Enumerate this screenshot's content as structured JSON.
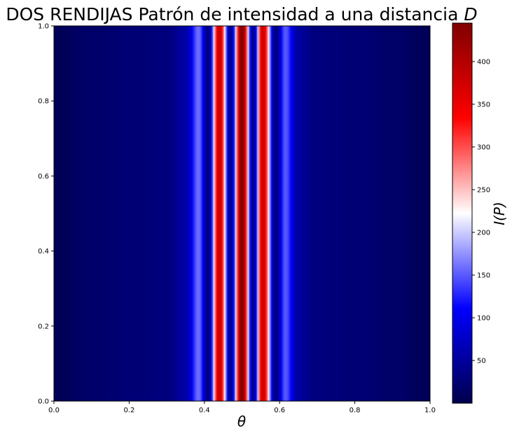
{
  "chart_data": {
    "type": "heatmap",
    "title": "DOS RENDIJAS Patrón de intensidad a una distancia ",
    "title_var": "D",
    "xlabel": "θ",
    "ylabel": "",
    "colorbar_label": "I(P)",
    "colormap": "seismic",
    "colormap_stops": [
      "#00004c",
      "#0000ff",
      "#ffffff",
      "#ff0000",
      "#800000"
    ],
    "xlim": [
      0.0,
      1.0
    ],
    "ylim": [
      0.0,
      1.0
    ],
    "clim": [
      0,
      445
    ],
    "x_ticks": [
      "0.0",
      "0.2",
      "0.4",
      "0.6",
      "0.8",
      "1.0"
    ],
    "y_ticks": [
      "0.0",
      "0.2",
      "0.4",
      "0.6",
      "0.8",
      "1.0"
    ],
    "colorbar_ticks": [
      "50",
      "100",
      "150",
      "200",
      "250",
      "300",
      "350",
      "400"
    ],
    "colorbar_tick_values": [
      50,
      100,
      150,
      200,
      250,
      300,
      350,
      400
    ],
    "profile_x": [
      0.0,
      0.1,
      0.2,
      0.3,
      0.35,
      0.385,
      0.41,
      0.44,
      0.47,
      0.5,
      0.53,
      0.555,
      0.59,
      0.615,
      0.65,
      0.7,
      0.8,
      0.9,
      1.0
    ],
    "profile_intensity": [
      6,
      18,
      25,
      30,
      55,
      160,
      30,
      385,
      40,
      445,
      40,
      380,
      30,
      150,
      50,
      30,
      25,
      18,
      6
    ]
  }
}
